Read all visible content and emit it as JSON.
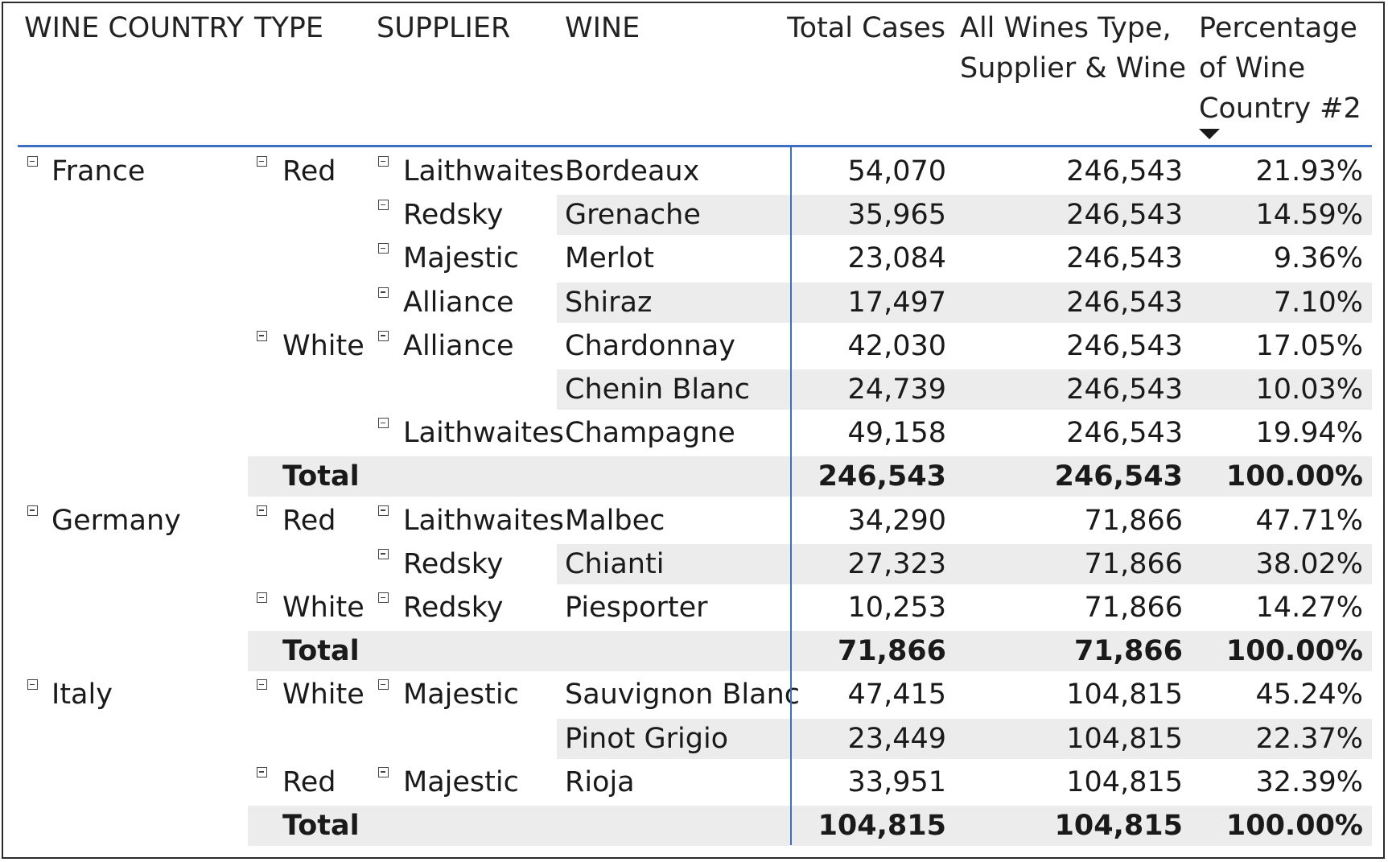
{
  "headers": {
    "country": "WINE COUNTRY",
    "type": "TYPE",
    "supplier": "SUPPLIER",
    "wine": "WINE",
    "total_cases": "Total Cases",
    "all_wines": [
      "All Wines Type,",
      "Supplier & Wine"
    ],
    "percentage": [
      "Percentage",
      "of Wine",
      "Country #2"
    ]
  },
  "sort": {
    "column": "percentage",
    "direction": "descending"
  },
  "rows": [
    {
      "country": "France",
      "type": "Red",
      "supplier": "Laithwaites",
      "wine": "Bordeaux",
      "total_cases": "54,070",
      "all_wines": "246,543",
      "percentage": "21.93%"
    },
    {
      "country": "",
      "type": "",
      "supplier": "Redsky",
      "wine": "Grenache",
      "total_cases": "35,965",
      "all_wines": "246,543",
      "percentage": "14.59%"
    },
    {
      "country": "",
      "type": "",
      "supplier": "Majestic",
      "wine": "Merlot",
      "total_cases": "23,084",
      "all_wines": "246,543",
      "percentage": "9.36%"
    },
    {
      "country": "",
      "type": "",
      "supplier": "Alliance",
      "wine": "Shiraz",
      "total_cases": "17,497",
      "all_wines": "246,543",
      "percentage": "7.10%"
    },
    {
      "country": "",
      "type": "White",
      "supplier": "Alliance",
      "wine": "Chardonnay",
      "total_cases": "42,030",
      "all_wines": "246,543",
      "percentage": "17.05%"
    },
    {
      "country": "",
      "type": "",
      "supplier": "",
      "wine": "Chenin Blanc",
      "total_cases": "24,739",
      "all_wines": "246,543",
      "percentage": "10.03%"
    },
    {
      "country": "",
      "type": "",
      "supplier": "Laithwaites",
      "wine": "Champagne",
      "total_cases": "49,158",
      "all_wines": "246,543",
      "percentage": "19.94%"
    },
    {
      "total": true,
      "label": "Total",
      "total_cases": "246,543",
      "all_wines": "246,543",
      "percentage": "100.00%"
    },
    {
      "country": "Germany",
      "type": "Red",
      "supplier": "Laithwaites",
      "wine": "Malbec",
      "total_cases": "34,290",
      "all_wines": "71,866",
      "percentage": "47.71%"
    },
    {
      "country": "",
      "type": "",
      "supplier": "Redsky",
      "wine": "Chianti",
      "total_cases": "27,323",
      "all_wines": "71,866",
      "percentage": "38.02%"
    },
    {
      "country": "",
      "type": "White",
      "supplier": "Redsky",
      "wine": "Piesporter",
      "total_cases": "10,253",
      "all_wines": "71,866",
      "percentage": "14.27%"
    },
    {
      "total": true,
      "label": "Total",
      "total_cases": "71,866",
      "all_wines": "71,866",
      "percentage": "100.00%"
    },
    {
      "country": "Italy",
      "type": "White",
      "supplier": "Majestic",
      "wine": "Sauvignon Blanc",
      "total_cases": "47,415",
      "all_wines": "104,815",
      "percentage": "45.24%"
    },
    {
      "country": "",
      "type": "",
      "supplier": "",
      "wine": "Pinot Grigio",
      "total_cases": "23,449",
      "all_wines": "104,815",
      "percentage": "22.37%"
    },
    {
      "country": "",
      "type": "Red",
      "supplier": "Majestic",
      "wine": "Rioja",
      "total_cases": "33,951",
      "all_wines": "104,815",
      "percentage": "32.39%"
    },
    {
      "total": true,
      "label": "Total",
      "total_cases": "104,815",
      "all_wines": "104,815",
      "percentage": "100.00%"
    }
  ]
}
